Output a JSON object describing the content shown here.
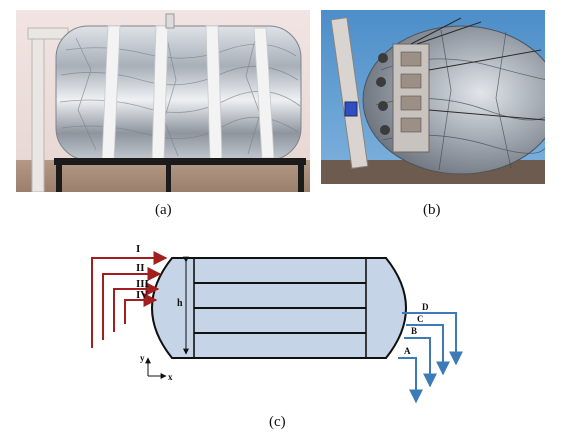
{
  "captions": {
    "a": "(a)",
    "b": "(b)",
    "c": "(c)"
  },
  "diagram": {
    "inlets": [
      "I",
      "II",
      "III",
      "IV"
    ],
    "outlets": [
      "A",
      "B",
      "C",
      "D"
    ],
    "height_label": "h",
    "axes": {
      "y": "y",
      "x": "x"
    },
    "colors": {
      "inlet": "#a31f1f",
      "outlet": "#3d7ab8",
      "tank_fill": "#c5d4e6",
      "outline": "#111111"
    }
  },
  "photos": {
    "a": "insulated-storage-tank-photo",
    "b": "insulated-tank-with-sensors-photo"
  }
}
